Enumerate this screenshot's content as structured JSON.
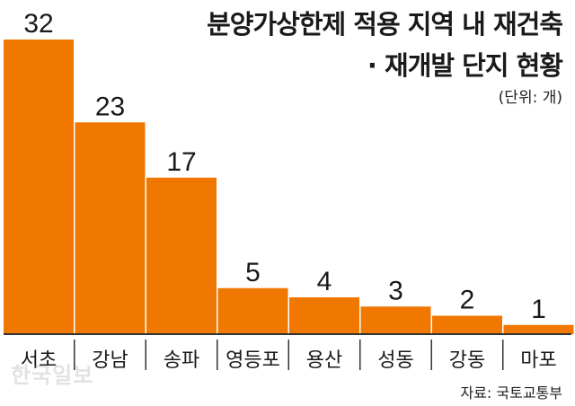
{
  "header": {
    "title_line1": "분양가상한제 적용 지역 내 재건축",
    "title_line2": "· 재개발 단지 현황",
    "unit": "(단위: 개)"
  },
  "footer": {
    "source": "자료: 국토교통부",
    "watermark": "한국일보"
  },
  "colors": {
    "bar": "#F07800",
    "axis": "#333333",
    "text": "#1a1a1a"
  },
  "chart_data": {
    "type": "bar",
    "title": "분양가상한제 적용 지역 내 재건축 · 재개발 단지 현황",
    "categories": [
      "서초",
      "강남",
      "송파",
      "영등포",
      "용산",
      "성동",
      "강동",
      "마포"
    ],
    "values": [
      32,
      23,
      17,
      5,
      4,
      3,
      2,
      1
    ],
    "ylabel": "(단위: 개)",
    "ylim": [
      0,
      32
    ],
    "grid": false,
    "legend": "none"
  }
}
